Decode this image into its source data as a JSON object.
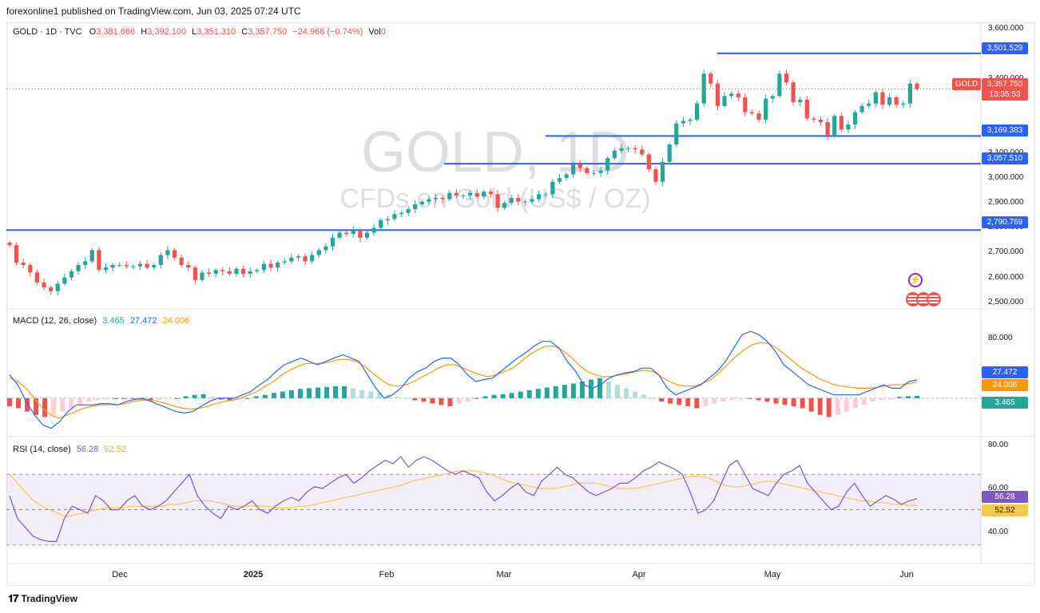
{
  "header": {
    "published": "forexonline1 published on TradingView.com, Jun 03, 2025 07:24 UTC"
  },
  "footer": {
    "brand": "TradingView",
    "logo": "tradingview-logo"
  },
  "watermark": {
    "line1": "GOLD, 1D",
    "line2": "CFDs on Gold (US$ / OZ)"
  },
  "legend": {
    "symbol": "GOLD · 1D · TVC",
    "o_label": "O",
    "o": "3,381.666",
    "h_label": "H",
    "h": "3,392.100",
    "l_label": "L",
    "l": "3,351.310",
    "c_label": "C",
    "c": "3,357.750",
    "change": "−24.966 (−0.74%)",
    "vol_label": "Vol",
    "vol": "0"
  },
  "colors": {
    "up": "#26a69a",
    "down": "#ef5350",
    "level": "#2962ff",
    "macd": "#2962ff",
    "signal": "#ff9800",
    "rsi": "#7e57c2",
    "rsi_ma": "#f7c948",
    "hist_up": "#26a69a",
    "hist_up_weak": "#b2dfdb",
    "hist_down": "#ef5350",
    "hist_down_weak": "#ffcdd2"
  },
  "icons": [
    "lightning-icon",
    "us-flag-icon"
  ],
  "chart_data": [
    {
      "type": "candlestick",
      "symbol": "GOLD",
      "timeframe": "1D",
      "x_labels": [
        "Dec",
        "2025",
        "Feb",
        "Mar",
        "Apr",
        "May",
        "Jun"
      ],
      "y_ticks": [
        "3,600.000",
        "3,400.000",
        "3,200.000",
        "3,100.000",
        "3,000.000",
        "2,900.000",
        "2,800.000",
        "2,700.000",
        "2,600.000",
        "2,500.000"
      ],
      "ylim": [
        2480,
        3620
      ],
      "close": [
        2730,
        2660,
        2650,
        2620,
        2580,
        2560,
        2545,
        2575,
        2600,
        2625,
        2650,
        2665,
        2710,
        2630,
        2640,
        2650,
        2650,
        2645,
        2645,
        2655,
        2640,
        2650,
        2690,
        2710,
        2680,
        2650,
        2640,
        2590,
        2620,
        2615,
        2630,
        2625,
        2615,
        2635,
        2615,
        2625,
        2630,
        2655,
        2640,
        2660,
        2665,
        2680,
        2685,
        2665,
        2690,
        2710,
        2725,
        2760,
        2780,
        2775,
        2790,
        2760,
        2780,
        2800,
        2830,
        2835,
        2855,
        2860,
        2875,
        2895,
        2905,
        2915,
        2920,
        2915,
        2940,
        2930,
        2930,
        2940,
        2925,
        2945,
        2935,
        2880,
        2900,
        2920,
        2905,
        2905,
        2915,
        2935,
        2935,
        2985,
        3000,
        3015,
        3055,
        3040,
        3020,
        3020,
        3030,
        3080,
        3110,
        3120,
        3120,
        3115,
        3095,
        3035,
        2985,
        3065,
        3135,
        3220,
        3230,
        3235,
        3300,
        3420,
        3380,
        3290,
        3330,
        3340,
        3325,
        3265,
        3260,
        3235,
        3320,
        3330,
        3420,
        3385,
        3305,
        3315,
        3240,
        3235,
        3225,
        3170,
        3250,
        3195,
        3215,
        3265,
        3290,
        3300,
        3345,
        3295,
        3325,
        3295,
        3300,
        3380,
        3358
      ],
      "levels": [
        3501.529,
        3169.383,
        3057.51,
        2790.769
      ],
      "current_price": "3,357.750",
      "countdown": "13:35:53",
      "tag_labels": [
        "3,501.529",
        "3,169.383",
        "3,057.510",
        "2,790.769"
      ]
    },
    {
      "type": "line",
      "name": "MACD (12, 26, close)",
      "legend_values": [
        "3.465",
        "27.472",
        "24.006"
      ],
      "y_ticks": [
        "80.000"
      ],
      "ylim": [
        -55,
        130
      ],
      "macd": [
        35,
        20,
        -5,
        -25,
        -40,
        -45,
        -35,
        -20,
        -10,
        -10,
        -10,
        -8,
        -8,
        -10,
        -5,
        -2,
        0,
        -5,
        -10,
        -15,
        -20,
        -22,
        -20,
        -12,
        -5,
        0,
        0,
        0,
        5,
        10,
        20,
        28,
        40,
        50,
        55,
        60,
        55,
        50,
        55,
        60,
        65,
        60,
        55,
        35,
        15,
        0,
        5,
        15,
        30,
        40,
        45,
        55,
        60,
        60,
        50,
        35,
        25,
        28,
        30,
        40,
        50,
        60,
        68,
        78,
        85,
        85,
        75,
        55,
        40,
        20,
        15,
        20,
        30,
        35,
        38,
        40,
        45,
        45,
        35,
        15,
        5,
        10,
        15,
        20,
        30,
        40,
        55,
        75,
        95,
        100,
        95,
        85,
        70,
        50,
        40,
        30,
        20,
        15,
        10,
        5,
        5,
        5,
        5,
        10,
        15,
        20,
        15,
        15,
        25,
        27.5
      ],
      "signal": [
        30,
        25,
        15,
        0,
        -15,
        -25,
        -30,
        -25,
        -20,
        -15,
        -12,
        -10,
        -10,
        -10,
        -8,
        -5,
        -3,
        -3,
        -5,
        -8,
        -12,
        -15,
        -16,
        -15,
        -12,
        -8,
        -5,
        -3,
        0,
        5,
        10,
        18,
        25,
        35,
        42,
        48,
        52,
        52,
        52,
        55,
        58,
        58,
        55,
        48,
        38,
        28,
        20,
        18,
        20,
        25,
        32,
        38,
        45,
        50,
        50,
        45,
        40,
        35,
        32,
        35,
        40,
        45,
        55,
        65,
        72,
        78,
        78,
        72,
        62,
        50,
        40,
        35,
        32,
        33,
        35,
        37,
        40,
        42,
        40,
        32,
        25,
        20,
        18,
        18,
        22,
        28,
        38,
        50,
        62,
        72,
        80,
        83,
        82,
        75,
        65,
        55,
        45,
        38,
        30,
        25,
        20,
        18,
        16,
        15,
        15,
        16,
        18,
        20,
        20,
        22,
        24
      ],
      "hist": [
        -12,
        -15,
        -20,
        -25,
        -28,
        -25,
        -20,
        -15,
        -10,
        -5,
        -3,
        -2,
        0,
        0,
        0,
        -2,
        -3,
        -2,
        -1,
        0,
        3,
        5,
        6,
        2,
        -2,
        -3,
        -2,
        0,
        3,
        5,
        8,
        10,
        12,
        14,
        15,
        16,
        17,
        18,
        18,
        15,
        12,
        10,
        8,
        5,
        2,
        0,
        -3,
        -5,
        -8,
        -10,
        -12,
        -8,
        -5,
        0,
        3,
        5,
        6,
        8,
        10,
        12,
        14,
        16,
        18,
        20,
        22,
        25,
        28,
        30,
        25,
        20,
        15,
        10,
        5,
        0,
        -5,
        -8,
        -10,
        -12,
        -15,
        -12,
        -8,
        -5,
        -3,
        -2,
        0,
        -3,
        -5,
        -8,
        -10,
        -12,
        -15,
        -20,
        -25,
        -28,
        -25,
        -20,
        -15,
        -10,
        -5,
        -3,
        -2,
        2,
        3,
        3.465
      ]
    },
    {
      "type": "line",
      "name": "RSI (14, close)",
      "legend_values": [
        "56.28",
        "52.52"
      ],
      "y_ticks": [
        "80.00",
        "60.00",
        "40.00"
      ],
      "ylim": [
        20,
        90
      ],
      "band": [
        30,
        70
      ],
      "mid": 50,
      "rsi": [
        58,
        45,
        40,
        35,
        33,
        32,
        32,
        45,
        52,
        50,
        48,
        58,
        55,
        50,
        50,
        55,
        58,
        52,
        50,
        52,
        55,
        60,
        65,
        70,
        58,
        52,
        48,
        45,
        52,
        50,
        52,
        55,
        50,
        48,
        52,
        55,
        57,
        55,
        60,
        63,
        62,
        65,
        68,
        70,
        65,
        68,
        72,
        75,
        78,
        76,
        80,
        74,
        78,
        80,
        78,
        75,
        72,
        70,
        72,
        70,
        68,
        60,
        55,
        58,
        62,
        65,
        60,
        58,
        66,
        70,
        74,
        70,
        68,
        64,
        60,
        58,
        60,
        62,
        65,
        65,
        68,
        72,
        74,
        77,
        75,
        73,
        70,
        60,
        48,
        50,
        55,
        65,
        75,
        78,
        70,
        62,
        60,
        58,
        65,
        70,
        72,
        75,
        65,
        60,
        55,
        50,
        52,
        60,
        65,
        58,
        52,
        55,
        58,
        56,
        53,
        55,
        56.28
      ],
      "rsi_ma": [
        70,
        65,
        60,
        55,
        52,
        50,
        48,
        46,
        47,
        48,
        49,
        50,
        51,
        51,
        51,
        52,
        52,
        52,
        52,
        52,
        53,
        53,
        54,
        55,
        55,
        55,
        54,
        53,
        52,
        52,
        52,
        52,
        52,
        51,
        51,
        51,
        52,
        52,
        53,
        54,
        55,
        56,
        57,
        58,
        59,
        60,
        61,
        62,
        63,
        64,
        66,
        67,
        68,
        69,
        70,
        71,
        72,
        72,
        72,
        71,
        70,
        68,
        66,
        65,
        64,
        63,
        62,
        62,
        62,
        63,
        64,
        65,
        65,
        65,
        64,
        63,
        62,
        62,
        62,
        63,
        64,
        65,
        66,
        67,
        68,
        69,
        69,
        68,
        66,
        64,
        63,
        63,
        64,
        65,
        66,
        66,
        65,
        64,
        63,
        62,
        61,
        60,
        59,
        58,
        57,
        56,
        55,
        55,
        54,
        54,
        53,
        53,
        52.5,
        52.52
      ]
    }
  ],
  "x_axis_labels": [
    "Dec",
    "2025",
    "Feb",
    "Mar",
    "Apr",
    "May",
    "Jun"
  ]
}
